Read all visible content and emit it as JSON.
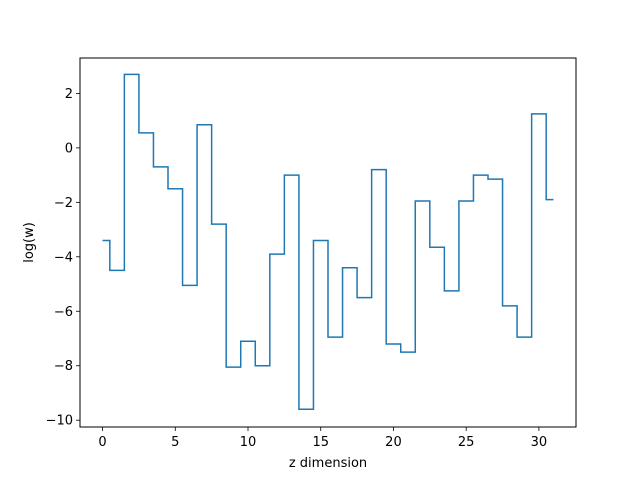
{
  "chart_data": {
    "type": "line",
    "drawstyle": "steps-mid",
    "title": "",
    "xlabel": "z dimension",
    "ylabel": "log(w)",
    "xlim": [
      -1.55,
      32.55
    ],
    "ylim": [
      -10.25,
      3.3
    ],
    "xticks": [
      0,
      5,
      10,
      15,
      20,
      25,
      30
    ],
    "yticks": [
      -10,
      -8,
      -6,
      -4,
      -2,
      0,
      2
    ],
    "xtick_labels": [
      "0",
      "5",
      "10",
      "15",
      "20",
      "25",
      "30"
    ],
    "ytick_labels": [
      "−10",
      "−8",
      "−6",
      "−4",
      "−2",
      "0",
      "2"
    ],
    "grid": false,
    "color": "#1f77b4",
    "series": [
      {
        "x": [
          0,
          1,
          2,
          3,
          4,
          5,
          6,
          7,
          8,
          9,
          10,
          11,
          12,
          13,
          14,
          15,
          16,
          17,
          18,
          19,
          20,
          21,
          22,
          23,
          24,
          25,
          26,
          27,
          28,
          29,
          30,
          31
        ],
        "values": [
          -3.4,
          -4.5,
          2.7,
          0.55,
          -0.7,
          -1.5,
          -5.05,
          0.85,
          -2.8,
          -8.05,
          -7.1,
          -8.0,
          -3.9,
          -1.0,
          -9.6,
          -3.4,
          -6.95,
          -4.4,
          -5.5,
          -0.8,
          -7.2,
          -7.5,
          -1.95,
          -3.65,
          -5.25,
          -1.95,
          -1.0,
          -1.15,
          -5.8,
          -6.95,
          1.25,
          -1.9
        ]
      }
    ]
  }
}
